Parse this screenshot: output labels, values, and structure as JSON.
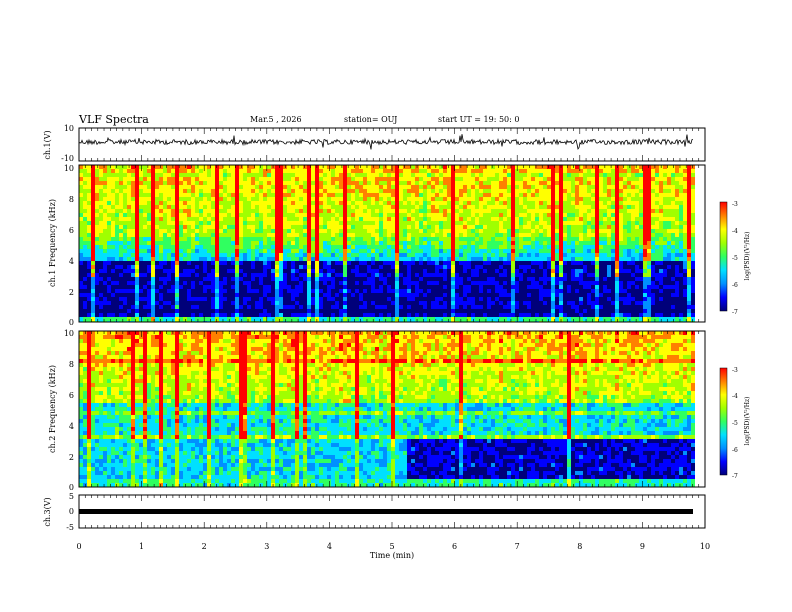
{
  "header": {
    "title": "VLF Spectra",
    "date": "Mar.5 , 2026",
    "station": "station= OUJ",
    "start": "start UT = 19: 50: 0"
  },
  "chart_data": [
    {
      "type": "line",
      "id": "ch1-waveform",
      "ylabel": "ch.1(V)",
      "ylim": [
        -10,
        10
      ],
      "yticks": [
        "10",
        "-10"
      ],
      "xlim": [
        0,
        10
      ],
      "description_of_signal": "noisy waveform centered near 0 V with spikes"
    },
    {
      "type": "heatmap",
      "id": "ch1-spectrogram",
      "ylabel": "ch.1 Frequency (kHz)",
      "ylim": [
        0,
        10
      ],
      "yticks": [
        "0",
        "2",
        "4",
        "6",
        "8",
        "10"
      ],
      "xlim": [
        0,
        9.85
      ],
      "colorbar": {
        "label": "log(PSD)(V²/Hz)",
        "range": [
          -7,
          -3
        ],
        "ticks": [
          "-3",
          "-4",
          "-5",
          "-6",
          "-7"
        ]
      }
    },
    {
      "type": "heatmap",
      "id": "ch2-spectrogram",
      "ylabel": "ch.2 Frequency (kHz)",
      "ylim": [
        0,
        10
      ],
      "yticks": [
        "0",
        "2",
        "4",
        "6",
        "8",
        "10"
      ],
      "xlim": [
        0,
        9.85
      ],
      "colorbar": {
        "label": "log(PSD)(V²/Hz)",
        "range": [
          -7,
          -3
        ],
        "ticks": [
          "-3",
          "-4",
          "-5",
          "-6",
          "-7"
        ]
      }
    },
    {
      "type": "line",
      "id": "ch3-waveform",
      "ylabel": "ch.3(V)",
      "ylim": [
        -5,
        5
      ],
      "yticks": [
        "5",
        "0",
        "-5"
      ],
      "xlim": [
        0,
        10
      ],
      "level": -1.5
    }
  ],
  "xaxis": {
    "label": "Time (min)",
    "ticks": [
      "0",
      "1",
      "2",
      "3",
      "4",
      "5",
      "6",
      "7",
      "8",
      "9",
      "10"
    ]
  },
  "colors": {
    "scale": [
      "#00007a",
      "#0000ff",
      "#0090ff",
      "#00e0ff",
      "#30ff60",
      "#a0ff00",
      "#ffff00",
      "#ff8000",
      "#ff0000",
      "#ffffff"
    ]
  }
}
